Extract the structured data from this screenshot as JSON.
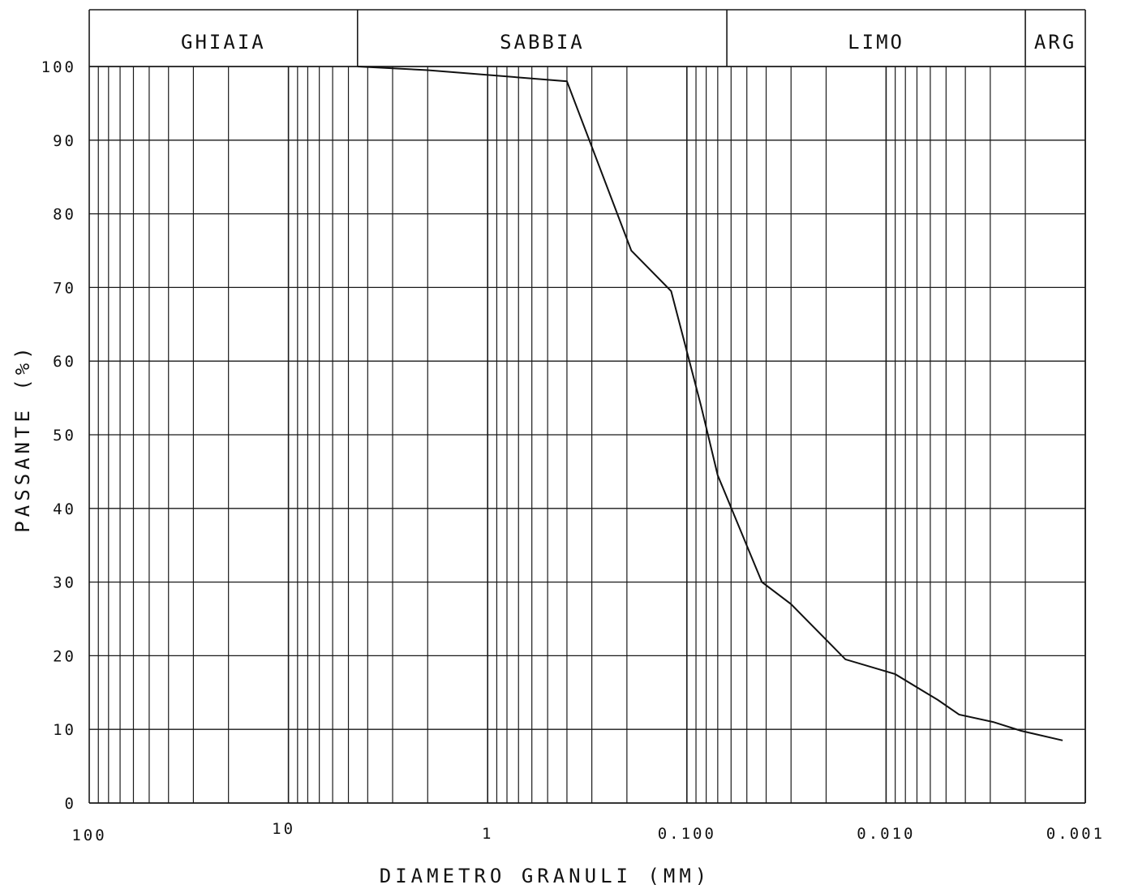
{
  "chart_data": {
    "type": "line",
    "title": "",
    "xlabel": "DIAMETRO GRANULI (MM)",
    "ylabel": "PASSANTE (%)",
    "x_scale": "log",
    "x_reversed": true,
    "xlim": [
      100,
      0.001
    ],
    "ylim": [
      0,
      100
    ],
    "y_ticks": [
      "0",
      "10",
      "20",
      "30",
      "40",
      "50",
      "60",
      "70",
      "80",
      "90",
      "100"
    ],
    "x_ticks": [
      {
        "value": 100,
        "label": "100"
      },
      {
        "value": 10,
        "label": "10"
      },
      {
        "value": 1,
        "label": "1"
      },
      {
        "value": 0.1,
        "label": "0.100"
      },
      {
        "value": 0.01,
        "label": "0.010"
      },
      {
        "value": 0.001,
        "label": "0.001"
      }
    ],
    "grid": true,
    "bands": [
      {
        "label": "GHIAIA",
        "from": 100,
        "to": 4.5
      },
      {
        "label": "SABBIA",
        "from": 4.5,
        "to": 0.063
      },
      {
        "label": "LIMO",
        "from": 0.063,
        "to": 0.002
      },
      {
        "label": "ARG",
        "from": 0.002,
        "to": 0.001
      }
    ],
    "series": [
      {
        "name": "",
        "x": [
          4.5,
          2,
          0.4,
          0.19,
          0.12,
          0.085,
          0.07,
          0.042,
          0.03,
          0.016,
          0.009,
          0.0055,
          0.0043,
          0.0029,
          0.0021,
          0.0013
        ],
        "y": [
          100,
          99.5,
          98,
          75,
          69.5,
          54,
          44.5,
          30,
          27,
          19.5,
          17.5,
          14,
          12,
          11,
          9.8,
          8.5
        ]
      }
    ]
  }
}
